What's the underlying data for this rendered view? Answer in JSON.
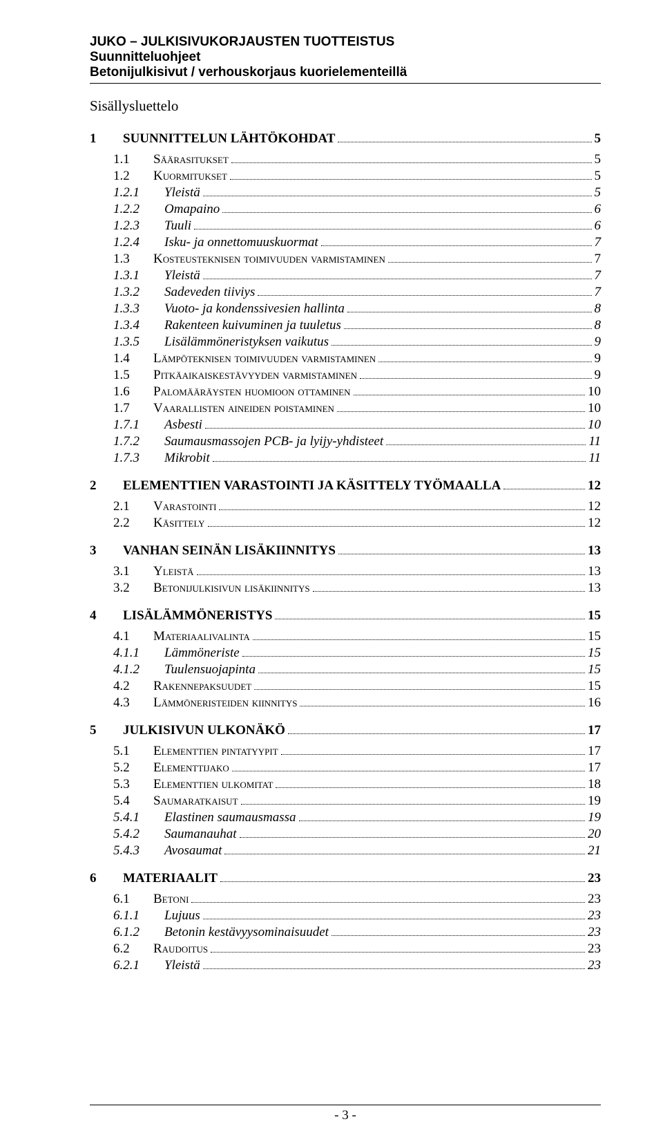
{
  "header": {
    "line1": "JUKO – JULKISIVUKORJAUSTEN TUOTTEISTUS",
    "line2": "Suunnitteluohjeet",
    "line3": "Betonijulkisivut / verhouskorjaus kuorielementeillä"
  },
  "sisallys": "Sisällysluettelo",
  "toc": [
    {
      "lvl": 1,
      "num": "1",
      "txt": "SUUNNITTELUN LÄHTÖKOHDAT",
      "pg": "5"
    },
    {
      "lvl": 2,
      "num": "1.1",
      "txt": "Säärasitukset",
      "pg": "5"
    },
    {
      "lvl": 2,
      "num": "1.2",
      "txt": "Kuormitukset",
      "pg": "5"
    },
    {
      "lvl": 3,
      "num": "1.2.1",
      "txt": "Yleistä",
      "pg": "5"
    },
    {
      "lvl": 3,
      "num": "1.2.2",
      "txt": "Omapaino",
      "pg": "6"
    },
    {
      "lvl": 3,
      "num": "1.2.3",
      "txt": "Tuuli",
      "pg": "6"
    },
    {
      "lvl": 3,
      "num": "1.2.4",
      "txt": "Isku- ja onnettomuuskuormat",
      "pg": "7"
    },
    {
      "lvl": 2,
      "num": "1.3",
      "txt": "Kosteusteknisen toimivuuden varmistaminen",
      "pg": "7"
    },
    {
      "lvl": 3,
      "num": "1.3.1",
      "txt": "Yleistä",
      "pg": "7"
    },
    {
      "lvl": 3,
      "num": "1.3.2",
      "txt": "Sadeveden tiiviys",
      "pg": "7"
    },
    {
      "lvl": 3,
      "num": "1.3.3",
      "txt": "Vuoto- ja kondenssivesien hallinta",
      "pg": "8"
    },
    {
      "lvl": 3,
      "num": "1.3.4",
      "txt": "Rakenteen kuivuminen ja tuuletus",
      "pg": "8"
    },
    {
      "lvl": 3,
      "num": "1.3.5",
      "txt": "Lisälämmöneristyksen vaikutus",
      "pg": "9"
    },
    {
      "lvl": 2,
      "num": "1.4",
      "txt": "Lämpöteknisen toimivuuden varmistaminen",
      "pg": "9"
    },
    {
      "lvl": 2,
      "num": "1.5",
      "txt": "Pitkäaikaiskestävyyden varmistaminen",
      "pg": "9"
    },
    {
      "lvl": 2,
      "num": "1.6",
      "txt": "Palomääräysten huomioon ottaminen",
      "pg": "10"
    },
    {
      "lvl": 2,
      "num": "1.7",
      "txt": "Vaarallisten aineiden poistaminen",
      "pg": "10"
    },
    {
      "lvl": 3,
      "num": "1.7.1",
      "txt": "Asbesti",
      "pg": "10"
    },
    {
      "lvl": 3,
      "num": "1.7.2",
      "txt": "Saumausmassojen PCB- ja lyijy-yhdisteet",
      "pg": "11"
    },
    {
      "lvl": 3,
      "num": "1.7.3",
      "txt": "Mikrobit",
      "pg": "11"
    },
    {
      "lvl": 1,
      "num": "2",
      "txt": "ELEMENTTIEN VARASTOINTI JA KÄSITTELY TYÖMAALLA",
      "pg": "12"
    },
    {
      "lvl": 2,
      "num": "2.1",
      "txt": "Varastointi",
      "pg": "12"
    },
    {
      "lvl": 2,
      "num": "2.2",
      "txt": "Käsittely",
      "pg": "12"
    },
    {
      "lvl": 1,
      "num": "3",
      "txt": "VANHAN SEINÄN LISÄKIINNITYS",
      "pg": "13"
    },
    {
      "lvl": 2,
      "num": "3.1",
      "txt": "Yleistä",
      "pg": "13"
    },
    {
      "lvl": 2,
      "num": "3.2",
      "txt": "Betonijulkisivun lisäkiinnitys",
      "pg": "13"
    },
    {
      "lvl": 1,
      "num": "4",
      "txt": "LISÄLÄMMÖNERISTYS",
      "pg": "15"
    },
    {
      "lvl": 2,
      "num": "4.1",
      "txt": "Materiaalivalinta",
      "pg": "15"
    },
    {
      "lvl": 3,
      "num": "4.1.1",
      "txt": "Lämmöneriste",
      "pg": "15"
    },
    {
      "lvl": 3,
      "num": "4.1.2",
      "txt": "Tuulensuojapinta",
      "pg": "15"
    },
    {
      "lvl": 2,
      "num": "4.2",
      "txt": "Rakennepaksuudet",
      "pg": "15"
    },
    {
      "lvl": 2,
      "num": "4.3",
      "txt": "Lämmöneristeiden kiinnitys",
      "pg": "16"
    },
    {
      "lvl": 1,
      "num": "5",
      "txt": "JULKISIVUN ULKONÄKÖ",
      "pg": "17"
    },
    {
      "lvl": 2,
      "num": "5.1",
      "txt": "Elementtien pintatyypit",
      "pg": "17"
    },
    {
      "lvl": 2,
      "num": "5.2",
      "txt": "Elementtijako",
      "pg": "17"
    },
    {
      "lvl": 2,
      "num": "5.3",
      "txt": "Elementtien ulkomitat",
      "pg": "18"
    },
    {
      "lvl": 2,
      "num": "5.4",
      "txt": "Saumaratkaisut",
      "pg": "19"
    },
    {
      "lvl": 3,
      "num": "5.4.1",
      "txt": "Elastinen saumausmassa",
      "pg": "19"
    },
    {
      "lvl": 3,
      "num": "5.4.2",
      "txt": "Saumanauhat",
      "pg": "20"
    },
    {
      "lvl": 3,
      "num": "5.4.3",
      "txt": "Avosaumat",
      "pg": "21"
    },
    {
      "lvl": 1,
      "num": "6",
      "txt": "MATERIAALIT",
      "pg": "23"
    },
    {
      "lvl": 2,
      "num": "6.1",
      "txt": "Betoni",
      "pg": "23"
    },
    {
      "lvl": 3,
      "num": "6.1.1",
      "txt": "Lujuus",
      "pg": "23"
    },
    {
      "lvl": 3,
      "num": "6.1.2",
      "txt": "Betonin kestävyysominaisuudet",
      "pg": "23"
    },
    {
      "lvl": 2,
      "num": "6.2",
      "txt": "Raudoitus",
      "pg": "23"
    },
    {
      "lvl": 3,
      "num": "6.2.1",
      "txt": "Yleistä",
      "pg": "23"
    }
  ],
  "footer": {
    "pagenum": "- 3 -"
  }
}
